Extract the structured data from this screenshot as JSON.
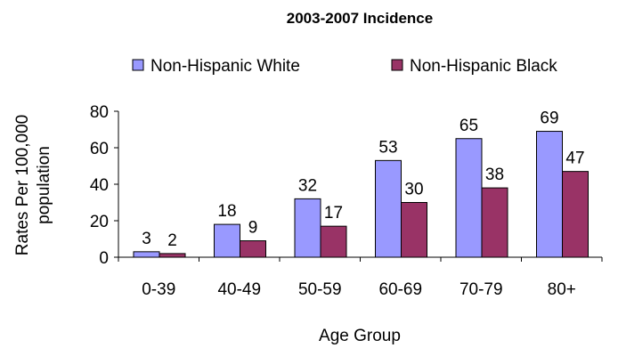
{
  "chart_data": {
    "type": "bar",
    "title": "2003-2007 Incidence",
    "xlabel": "Age Group",
    "ylabel": [
      "Rates Per 100,000",
      "population"
    ],
    "categories": [
      "0-39",
      "40-49",
      "50-59",
      "60-69",
      "70-79",
      "80+"
    ],
    "series": [
      {
        "name": "Non-Hispanic White",
        "values": [
          3,
          18,
          32,
          53,
          65,
          69
        ],
        "color": "#9999ff"
      },
      {
        "name": "Non-Hispanic Black",
        "values": [
          2,
          9,
          17,
          30,
          38,
          47
        ],
        "color": "#993366"
      }
    ],
    "ylim": [
      0,
      80
    ],
    "yticks": [
      0,
      20,
      40,
      60,
      80
    ],
    "grid": false,
    "legend": "top"
  }
}
